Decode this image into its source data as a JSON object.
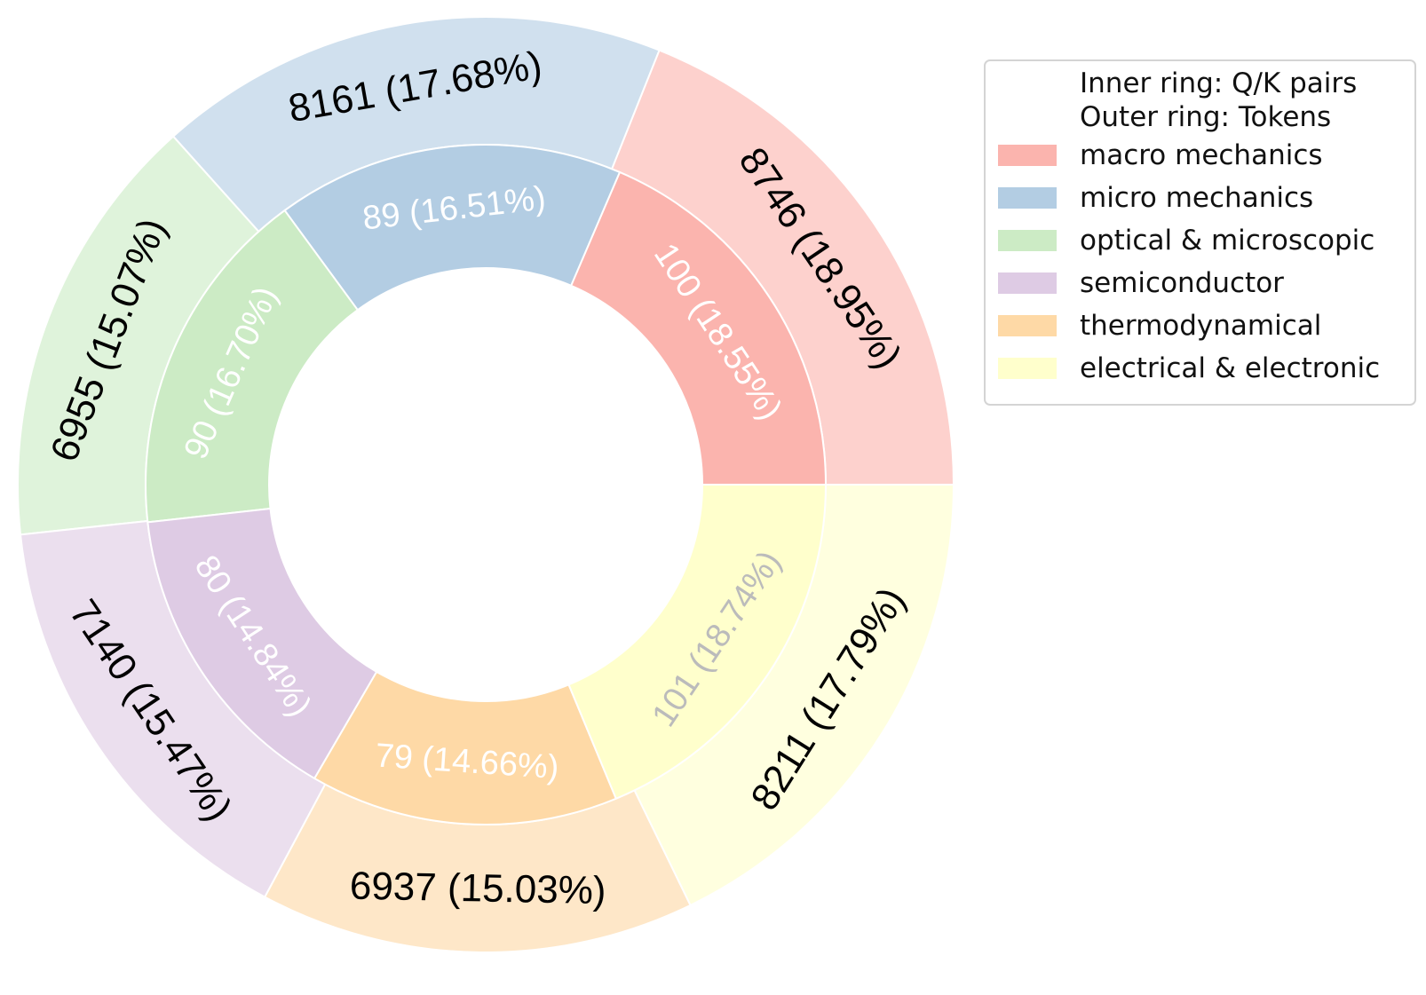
{
  "chart_data": {
    "type": "pie",
    "subtype": "nested donut",
    "legend_title_lines": [
      "Inner ring: Q/K pairs",
      "Outer ring: Tokens"
    ],
    "legend_position": "upper right",
    "categories": [
      "macro mechanics",
      "micro mechanics",
      "optical & microscopic",
      "semiconductor",
      "thermodynamical",
      "electrical & electronic"
    ],
    "colors": [
      "#fbb4ae",
      "#b3cde3",
      "#ccebc5",
      "#decbe4",
      "#fed9a6",
      "#ffffcc"
    ],
    "series": [
      {
        "ring": "inner",
        "values": [
          100,
          89,
          90,
          80,
          79,
          101
        ],
        "labels": [
          "100 (18.55%)",
          "89 (16.51%)",
          "90 (16.70%)",
          "80 (14.84%)",
          "79 (14.66%)",
          "101 (18.74%)"
        ],
        "label_colors": [
          "#ffffff",
          "#ffffff",
          "#ffffff",
          "#ffffff",
          "#ffffff",
          "#bbbbbb"
        ]
      },
      {
        "ring": "outer",
        "values": [
          8746,
          8161,
          6955,
          7140,
          6937,
          8211
        ],
        "labels": [
          "8746 (18.95%)",
          "8161 (17.68%)",
          "6955 (15.07%)",
          "7140 (15.47%)",
          "6937 (15.03%)",
          "8211 (17.79%)"
        ],
        "label_colors": [
          "#000000",
          "#000000",
          "#000000",
          "#000000",
          "#000000",
          "#000000"
        ]
      }
    ]
  }
}
